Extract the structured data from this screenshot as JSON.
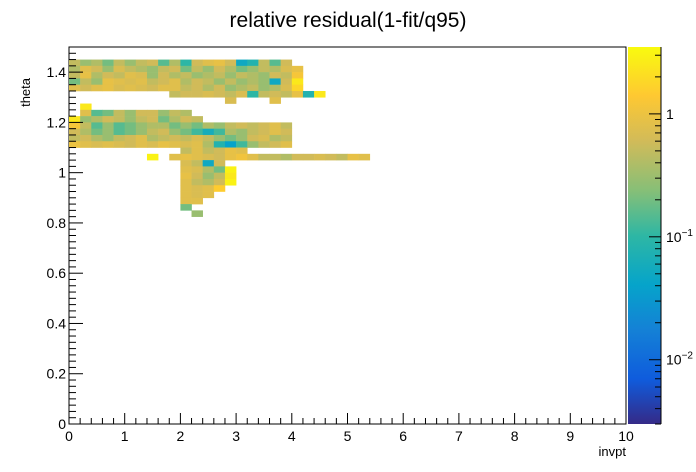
{
  "chart_data": {
    "type": "heatmap",
    "title": "relative residual(1-fit/q95)",
    "xlabel": "invpt",
    "ylabel": "theta",
    "xlim": [
      0,
      10
    ],
    "ylim": [
      0,
      1.5
    ],
    "x_ticks": [
      "0",
      "1",
      "2",
      "3",
      "4",
      "5",
      "6",
      "7",
      "8",
      "9",
      "10"
    ],
    "y_ticks": [
      "0",
      "0.2",
      "0.4",
      "0.6",
      "0.8",
      "1",
      "1.2",
      "1.4"
    ],
    "bin_width_x": 0.2,
    "bin_width_y": 0.025,
    "z_scale": "log",
    "z_range": [
      0.003,
      3.5
    ],
    "colorbar_labels": [
      {
        "base": "10",
        "exp": "-2",
        "value": 0.01
      },
      {
        "base": "10",
        "exp": "-1",
        "value": 0.1
      },
      {
        "base": "1",
        "exp": "",
        "value": 1
      }
    ],
    "rows": [
      {
        "y": 1.425,
        "x0": 0.0,
        "values": [
          0.5,
          0.3,
          0.4,
          0.2,
          0.5,
          0.3,
          0.5,
          0.6,
          0.15,
          0.4,
          0.1,
          0.6,
          0.8,
          0.9,
          0.6,
          0.05,
          0.08,
          0.5,
          0.15,
          0.6
        ]
      },
      {
        "y": 1.4,
        "x0": 0.0,
        "values": [
          0.4,
          0.8,
          0.6,
          0.3,
          0.7,
          0.5,
          0.4,
          0.3,
          0.5,
          0.6,
          0.2,
          0.5,
          0.3,
          0.6,
          0.4,
          0.2,
          0.3,
          0.5,
          0.4,
          0.7,
          0.9
        ]
      },
      {
        "y": 1.375,
        "x0": 0.0,
        "values": [
          0.5,
          0.9,
          0.4,
          0.6,
          0.5,
          0.8,
          0.7,
          0.3,
          0.6,
          0.4,
          0.5,
          0.3,
          0.4,
          0.5,
          0.3,
          0.5,
          0.4,
          0.3,
          0.6,
          0.5,
          1.2
        ]
      },
      {
        "y": 1.35,
        "x0": 0.0,
        "values": [
          0.2,
          0.5,
          0.3,
          0.9,
          0.8,
          0.7,
          0.8,
          0.5,
          0.6,
          0.8,
          0.4,
          0.6,
          0.5,
          0.3,
          0.5,
          0.3,
          0.4,
          0.3,
          0.05,
          0.6,
          2.5
        ]
      },
      {
        "y": 1.325,
        "x0": 0.0,
        "values": [
          0.8,
          0.6,
          0.8,
          0.9,
          0.7,
          0.8,
          0.7,
          0.6,
          0.8,
          0.8,
          0.5,
          0.6,
          0.4,
          0.6,
          0.3,
          0.4,
          0.5,
          0.3,
          0.4,
          0.7,
          1.8
        ]
      },
      {
        "y": 1.3,
        "x0": 1.8,
        "values": [
          0.5,
          0.6,
          0.6,
          0.7,
          0.6,
          0.5,
          0.7,
          0.1,
          0.5,
          0.6,
          0.5,
          0.9,
          0.08,
          2.5
        ]
      },
      {
        "y": 1.275,
        "x0": 2.8,
        "values": [
          0.7,
          null,
          null,
          null,
          0.8
        ]
      },
      {
        "y": 1.25,
        "x0": 0.2,
        "values": [
          2.5
        ]
      },
      {
        "y": 1.225,
        "x0": 0.2,
        "values": [
          0.8,
          0.15,
          0.2,
          0.5,
          0.3,
          0.6,
          0.6,
          0.3,
          0.5,
          0.4
        ]
      },
      {
        "y": 1.2,
        "x0": 0.0,
        "values": [
          2.5,
          0.3,
          0.4,
          0.6,
          0.5,
          0.3,
          0.5,
          0.6,
          0.2,
          0.4,
          0.6,
          0.5
        ]
      },
      {
        "y": 1.175,
        "x0": 0.0,
        "values": [
          1.2,
          0.5,
          0.15,
          0.3,
          0.15,
          0.2,
          0.3,
          0.4,
          0.4,
          0.2,
          0.3,
          0.2,
          0.4,
          0.3,
          0.5,
          0.6,
          0.5,
          0.6,
          0.8,
          0.5
        ]
      },
      {
        "y": 1.15,
        "x0": 0.0,
        "values": [
          0.6,
          0.4,
          0.2,
          0.3,
          0.15,
          0.2,
          0.3,
          0.5,
          0.6,
          0.3,
          0.2,
          0.12,
          0.06,
          0.12,
          0.4,
          0.3,
          0.5,
          0.6,
          0.8,
          0.6
        ]
      },
      {
        "y": 1.125,
        "x0": 0.0,
        "values": [
          0.5,
          0.6,
          0.4,
          0.3,
          0.5,
          0.6,
          0.8,
          0.4,
          0.5,
          0.6,
          0.5,
          0.7,
          0.5,
          0.3,
          0.2,
          0.3,
          0.6,
          0.7,
          0.4,
          0.5
        ]
      },
      {
        "y": 1.1,
        "x0": 0.0,
        "values": [
          1.0,
          0.8,
          0.7,
          0.8,
          0.7,
          0.6,
          0.8,
          0.7,
          0.9,
          0.8,
          0.7,
          0.8,
          0.4,
          0.08,
          0.04,
          0.12,
          0.3,
          0.5,
          0.6,
          0.8
        ]
      },
      {
        "y": 1.075,
        "x0": 2.0,
        "values": [
          0.5,
          0.8,
          0.5,
          0.6,
          0.9,
          0.8
        ]
      },
      {
        "y": 1.05,
        "x0": 1.4,
        "values": [
          3.0,
          null,
          0.8,
          0.9,
          0.8,
          0.7,
          0.6,
          0.9,
          1.1,
          0.8,
          0.5,
          0.5,
          0.4,
          0.6,
          0.6,
          0.7,
          0.6,
          0.5,
          0.9,
          0.8
        ]
      },
      {
        "y": 1.025,
        "x0": 2.0,
        "values": [
          0.7,
          0.5,
          0.05,
          0.6
        ]
      },
      {
        "y": 1.0,
        "x0": 2.0,
        "values": [
          0.8,
          0.7,
          0.4,
          0.2,
          3.0
        ]
      },
      {
        "y": 0.975,
        "x0": 2.0,
        "values": [
          0.9,
          0.6,
          0.3,
          0.5,
          2.5
        ]
      },
      {
        "y": 0.95,
        "x0": 2.0,
        "values": [
          0.8,
          0.5,
          0.4,
          0.6,
          3.0
        ]
      },
      {
        "y": 0.925,
        "x0": 2.0,
        "values": [
          0.8,
          0.7,
          0.8,
          1.5
        ]
      },
      {
        "y": 0.9,
        "x0": 2.0,
        "values": [
          0.8,
          0.7,
          0.8
        ]
      },
      {
        "y": 0.875,
        "x0": 2.0,
        "values": [
          0.8,
          0.8
        ]
      },
      {
        "y": 0.85,
        "x0": 2.0,
        "values": [
          0.2
        ]
      },
      {
        "y": 0.825,
        "x0": 2.0,
        "values": [
          null,
          0.3
        ]
      }
    ]
  }
}
